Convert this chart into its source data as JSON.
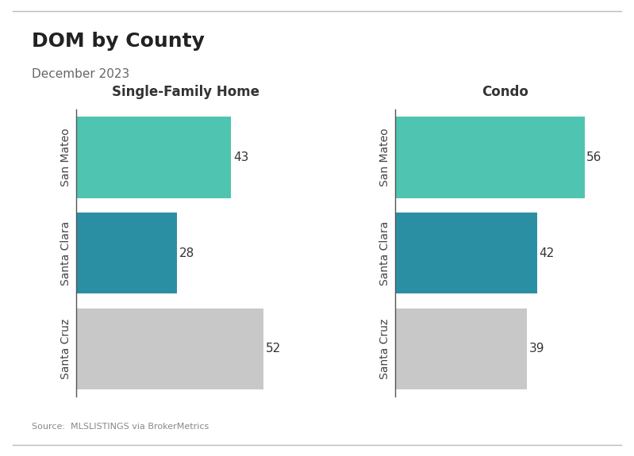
{
  "title": "DOM by County",
  "subtitle": "December 2023",
  "source": "Source:  MLSLISTINGS via BrokerMetrics",
  "panels": [
    {
      "label": "Single-Family Home",
      "counties": [
        "San Mateo",
        "Santa Clara",
        "Santa Cruz"
      ],
      "values": [
        43,
        28,
        52
      ],
      "colors": [
        "#4fc4b0",
        "#2b8fa3",
        "#c8c8c8"
      ]
    },
    {
      "label": "Condo",
      "counties": [
        "San Mateo",
        "Santa Clara",
        "Santa Cruz"
      ],
      "values": [
        56,
        42,
        39
      ],
      "colors": [
        "#4fc4b0",
        "#2b8fa3",
        "#c8c8c8"
      ]
    }
  ],
  "background_color": "#ffffff",
  "bar_label_fontsize": 11,
  "county_label_fontsize": 10,
  "panel_title_fontsize": 12,
  "title_fontsize": 18,
  "subtitle_fontsize": 11,
  "source_fontsize": 8
}
